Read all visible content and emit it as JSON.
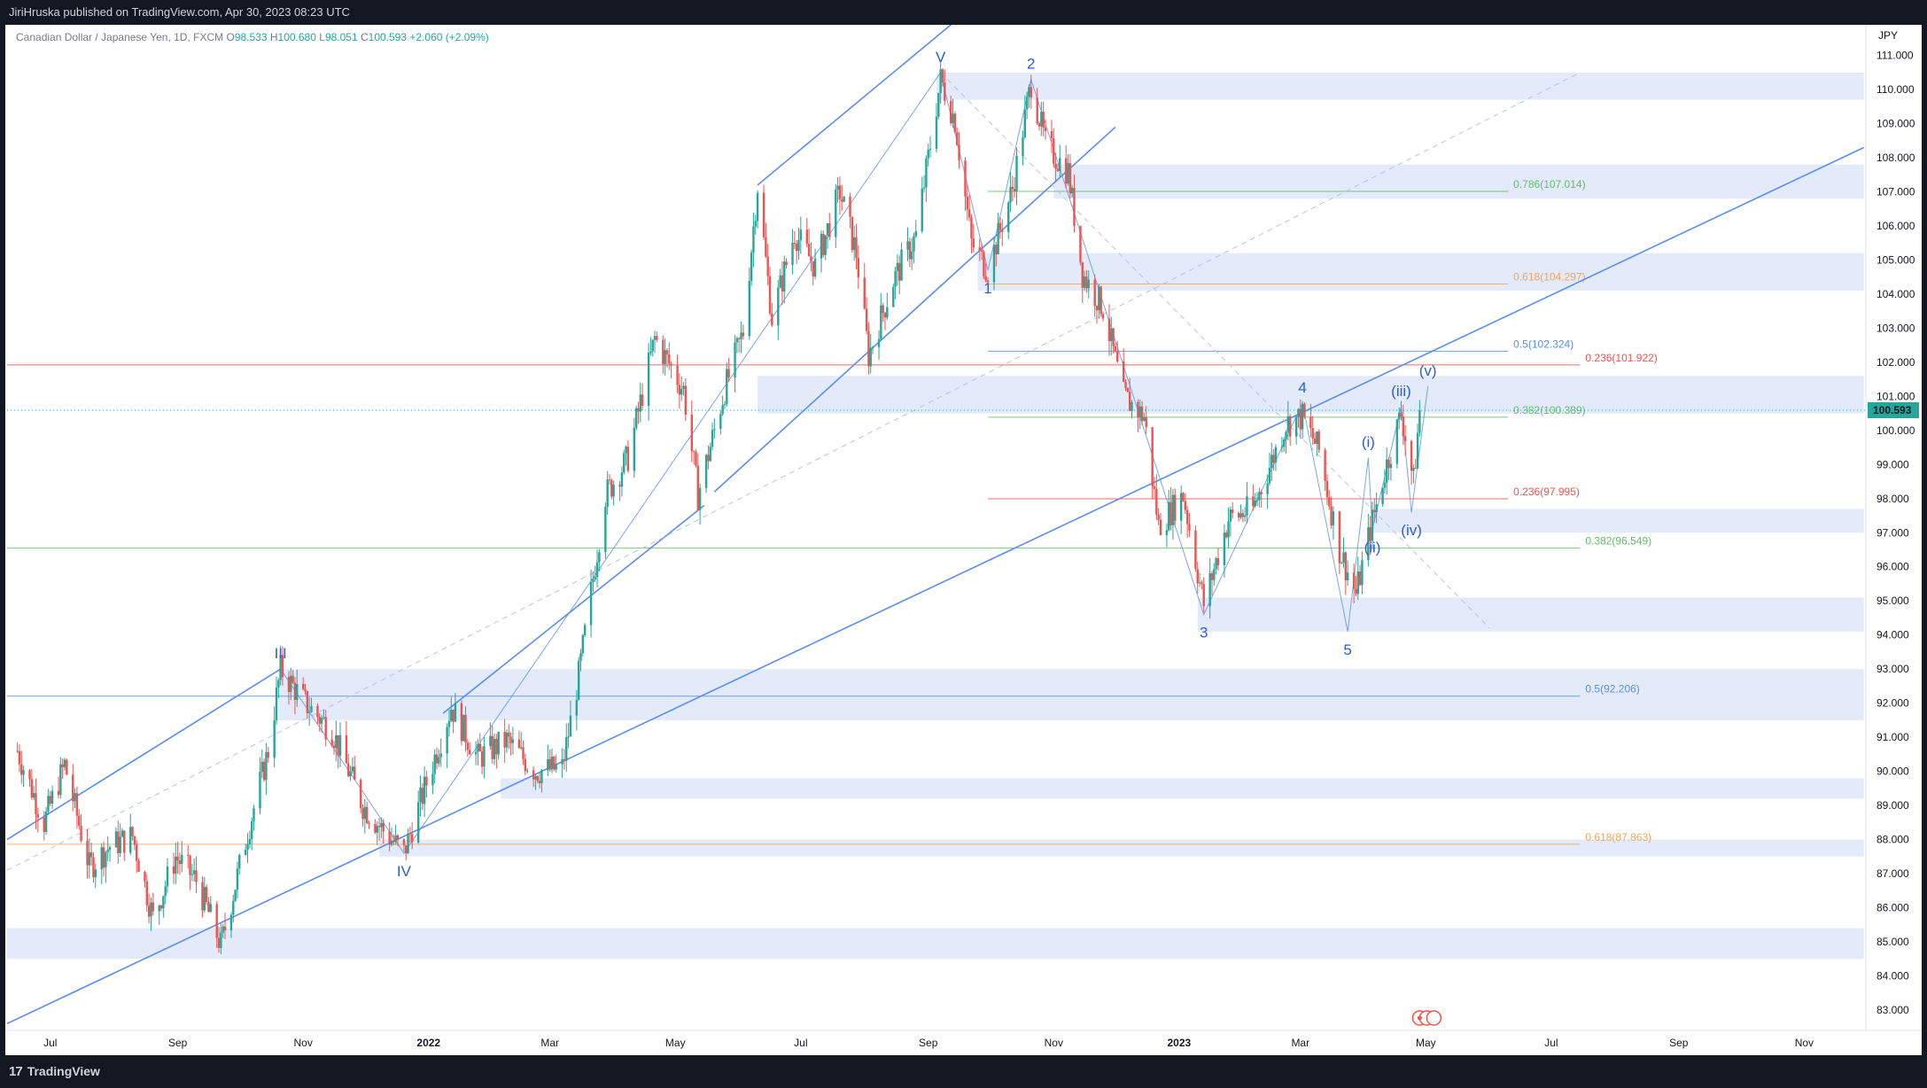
{
  "header": {
    "publisher": "JiriHruska published on TradingView.com, Apr 30, 2023 08:23 UTC"
  },
  "footer": {
    "brand": "TradingView"
  },
  "legend": {
    "symbol": "Canadian Dollar / Japanese Yen, 1D, FXCM",
    "open_label": "O",
    "open": "98.533",
    "high_label": "H",
    "high": "100.680",
    "low_label": "L",
    "low": "98.051",
    "close_label": "C",
    "close": "100.593",
    "change": "+2.060 (+2.09%)"
  },
  "colors": {
    "up": "#26a69a",
    "down": "#ef5350",
    "line": "#5b8def",
    "zone": "#e3ebfa",
    "wave": "#2a5cdb",
    "price_tag": "#26a69a"
  },
  "chart_data": {
    "type": "candlestick",
    "currency_label": "JPY",
    "last_price": "100.593",
    "ylim": [
      82.4,
      111.9
    ],
    "y_ticks": [
      "83.000",
      "84.000",
      "85.000",
      "86.000",
      "87.000",
      "88.000",
      "89.000",
      "90.000",
      "91.000",
      "92.000",
      "93.000",
      "94.000",
      "95.000",
      "96.000",
      "97.000",
      "98.000",
      "99.000",
      "100.000",
      "101.000",
      "102.000",
      "103.000",
      "104.000",
      "105.000",
      "106.000",
      "107.000",
      "108.000",
      "109.000",
      "110.000",
      "111.000"
    ],
    "x_ticks": [
      {
        "label": "Jul",
        "date": "2021-07-01"
      },
      {
        "label": "Sep",
        "date": "2021-09-01"
      },
      {
        "label": "Nov",
        "date": "2021-11-01"
      },
      {
        "label": "2022",
        "date": "2022-01-01"
      },
      {
        "label": "Mar",
        "date": "2022-03-01"
      },
      {
        "label": "May",
        "date": "2022-05-01"
      },
      {
        "label": "Jul",
        "date": "2022-07-01"
      },
      {
        "label": "Sep",
        "date": "2022-09-01"
      },
      {
        "label": "Nov",
        "date": "2022-11-01"
      },
      {
        "label": "2023",
        "date": "2023-01-01"
      },
      {
        "label": "Mar",
        "date": "2023-03-01"
      },
      {
        "label": "May",
        "date": "2023-05-01"
      },
      {
        "label": "Jul",
        "date": "2023-07-01"
      },
      {
        "label": "Sep",
        "date": "2023-09-01"
      },
      {
        "label": "Nov",
        "date": "2023-11-01"
      }
    ],
    "price_path": [
      {
        "d": "2021-06-15",
        "v": 90.6
      },
      {
        "d": "2021-06-28",
        "v": 88.5
      },
      {
        "d": "2021-07-08",
        "v": 90.2
      },
      {
        "d": "2021-07-20",
        "v": 87.2
      },
      {
        "d": "2021-07-30",
        "v": 87.8
      },
      {
        "d": "2021-08-10",
        "v": 88.1
      },
      {
        "d": "2021-08-20",
        "v": 85.7
      },
      {
        "d": "2021-08-31",
        "v": 87.5
      },
      {
        "d": "2021-09-10",
        "v": 86.8
      },
      {
        "d": "2021-09-22",
        "v": 84.9
      },
      {
        "d": "2021-10-05",
        "v": 88.2
      },
      {
        "d": "2021-10-15",
        "v": 90.6
      },
      {
        "d": "2021-10-21",
        "v": 93.0
      },
      {
        "d": "2021-11-02",
        "v": 92.0
      },
      {
        "d": "2021-11-15",
        "v": 91.2
      },
      {
        "d": "2021-11-30",
        "v": 89.0
      },
      {
        "d": "2021-12-08",
        "v": 88.4
      },
      {
        "d": "2021-12-20",
        "v": 87.6
      },
      {
        "d": "2022-01-05",
        "v": 90.6
      },
      {
        "d": "2022-01-12",
        "v": 91.9
      },
      {
        "d": "2022-01-25",
        "v": 90.4
      },
      {
        "d": "2022-02-08",
        "v": 90.9
      },
      {
        "d": "2022-02-22",
        "v": 90.0
      },
      {
        "d": "2022-03-07",
        "v": 90.1
      },
      {
        "d": "2022-03-15",
        "v": 92.8
      },
      {
        "d": "2022-03-28",
        "v": 98.1
      },
      {
        "d": "2022-04-08",
        "v": 99.2
      },
      {
        "d": "2022-04-21",
        "v": 102.7
      },
      {
        "d": "2022-05-05",
        "v": 101.2
      },
      {
        "d": "2022-05-12",
        "v": 98.1
      },
      {
        "d": "2022-05-25",
        "v": 101.2
      },
      {
        "d": "2022-06-03",
        "v": 102.9
      },
      {
        "d": "2022-06-10",
        "v": 107.2
      },
      {
        "d": "2022-06-17",
        "v": 103.3
      },
      {
        "d": "2022-06-28",
        "v": 105.8
      },
      {
        "d": "2022-07-08",
        "v": 104.8
      },
      {
        "d": "2022-07-20",
        "v": 107.0
      },
      {
        "d": "2022-07-28",
        "v": 105.2
      },
      {
        "d": "2022-08-03",
        "v": 102.2
      },
      {
        "d": "2022-08-15",
        "v": 104.4
      },
      {
        "d": "2022-08-26",
        "v": 105.7
      },
      {
        "d": "2022-09-07",
        "v": 110.3
      },
      {
        "d": "2022-09-14",
        "v": 109.1
      },
      {
        "d": "2022-09-22",
        "v": 105.5
      },
      {
        "d": "2022-09-30",
        "v": 104.7
      },
      {
        "d": "2022-10-12",
        "v": 107.1
      },
      {
        "d": "2022-10-21",
        "v": 110.2
      },
      {
        "d": "2022-10-28",
        "v": 108.4
      },
      {
        "d": "2022-11-08",
        "v": 107.6
      },
      {
        "d": "2022-11-15",
        "v": 104.6
      },
      {
        "d": "2022-11-25",
        "v": 103.6
      },
      {
        "d": "2022-12-05",
        "v": 101.0
      },
      {
        "d": "2022-12-15",
        "v": 100.4
      },
      {
        "d": "2022-12-22",
        "v": 97.2
      },
      {
        "d": "2023-01-03",
        "v": 98.1
      },
      {
        "d": "2023-01-13",
        "v": 94.9
      },
      {
        "d": "2023-01-25",
        "v": 97.4
      },
      {
        "d": "2023-02-06",
        "v": 97.7
      },
      {
        "d": "2023-02-22",
        "v": 100.2
      },
      {
        "d": "2023-03-02",
        "v": 100.4
      },
      {
        "d": "2023-03-10",
        "v": 99.4
      },
      {
        "d": "2023-03-20",
        "v": 96.5
      },
      {
        "d": "2023-03-28",
        "v": 95.2
      },
      {
        "d": "2023-04-04",
        "v": 97.1
      },
      {
        "d": "2023-04-12",
        "v": 99.0
      },
      {
        "d": "2023-04-19",
        "v": 100.5
      },
      {
        "d": "2023-04-25",
        "v": 98.5
      },
      {
        "d": "2023-04-28",
        "v": 100.593
      }
    ],
    "zones": [
      {
        "from": "2022-09-05",
        "to": "2023-11-30",
        "low": 109.7,
        "high": 110.5
      },
      {
        "from": "2022-11-01",
        "to": "2023-11-30",
        "low": 106.8,
        "high": 107.8
      },
      {
        "from": "2022-09-25",
        "to": "2023-11-30",
        "low": 104.1,
        "high": 105.2
      },
      {
        "from": "2022-06-10",
        "to": "2023-11-30",
        "low": 100.5,
        "high": 101.6
      },
      {
        "from": "2023-04-04",
        "to": "2023-11-30",
        "low": 97.0,
        "high": 97.7
      },
      {
        "from": "2023-01-10",
        "to": "2023-11-30",
        "low": 94.1,
        "high": 95.1
      },
      {
        "from": "2021-10-20",
        "to": "2023-11-30",
        "low": 91.5,
        "high": 93.0
      },
      {
        "from": "2022-02-05",
        "to": "2023-11-30",
        "low": 89.2,
        "high": 89.8
      },
      {
        "from": "2021-12-08",
        "to": "2023-11-30",
        "low": 87.5,
        "high": 88.0
      },
      {
        "from": "2021-06-10",
        "to": "2023-11-30",
        "low": 84.5,
        "high": 85.4
      }
    ],
    "fib_levels": [
      {
        "label": "0.786(107.014)",
        "value": 107.014,
        "from": "2022-09-30",
        "to": "2023-06-10",
        "color": "#66bb6a"
      },
      {
        "label": "0.618(104.297)",
        "value": 104.297,
        "from": "2022-09-30",
        "to": "2023-06-10",
        "color": "#f7a35c"
      },
      {
        "label": "0.5(102.324)",
        "value": 102.324,
        "from": "2022-09-30",
        "to": "2023-06-10",
        "color": "#5b8def"
      },
      {
        "label": "0.382(100.389)",
        "value": 100.389,
        "from": "2022-09-30",
        "to": "2023-06-10",
        "color": "#66bb6a"
      },
      {
        "label": "0.236(97.995)",
        "value": 97.995,
        "from": "2022-09-30",
        "to": "2023-06-10",
        "color": "#ef5350"
      },
      {
        "label": "0.236(101.922)",
        "value": 101.922,
        "from": "2021-06-10",
        "to": "2023-07-15",
        "color": "#ef5350"
      },
      {
        "label": "0.382(96.549)",
        "value": 96.549,
        "from": "2021-06-10",
        "to": "2023-07-15",
        "color": "#66bb6a"
      },
      {
        "label": "0.5(92.206)",
        "value": 92.206,
        "from": "2021-06-10",
        "to": "2023-07-15",
        "color": "#5b8def"
      },
      {
        "label": "0.618(87.863)",
        "value": 87.863,
        "from": "2021-06-10",
        "to": "2023-07-15",
        "color": "#f7a35c"
      }
    ],
    "trendlines": [
      {
        "from": {
          "d": "2021-06-10",
          "v": 82.6
        },
        "to": {
          "d": "2023-11-30",
          "v": 108.3
        }
      },
      {
        "from": {
          "d": "2022-05-20",
          "v": 98.2
        },
        "to": {
          "d": "2022-12-01",
          "v": 108.9
        }
      },
      {
        "from": {
          "d": "2022-06-10",
          "v": 107.2
        },
        "to": {
          "d": "2022-10-20",
          "v": 113.8
        }
      },
      {
        "from": {
          "d": "2021-06-10",
          "v": 88.0
        },
        "to": {
          "d": "2021-10-21",
          "v": 93.0
        }
      },
      {
        "from": {
          "d": "2022-01-08",
          "v": 91.7
        },
        "to": {
          "d": "2022-05-15",
          "v": 97.8
        }
      }
    ],
    "dashed_lines": [
      {
        "from": {
          "d": "2021-06-10",
          "v": 87.1
        },
        "to": {
          "d": "2023-07-15",
          "v": 110.5
        }
      },
      {
        "from": {
          "d": "2022-09-07",
          "v": 110.5
        },
        "to": {
          "d": "2023-06-01",
          "v": 94.2
        }
      }
    ],
    "waves": [
      {
        "label": "III",
        "d": "2021-10-21",
        "v": 93.0,
        "pos": "above"
      },
      {
        "label": "IV",
        "d": "2021-12-20",
        "v": 87.6,
        "pos": "below"
      },
      {
        "label": "V",
        "d": "2022-09-07",
        "v": 110.5,
        "pos": "above"
      },
      {
        "label": "1",
        "d": "2022-09-30",
        "v": 104.7,
        "pos": "below"
      },
      {
        "label": "2",
        "d": "2022-10-21",
        "v": 110.3,
        "pos": "above"
      },
      {
        "label": "3",
        "d": "2023-01-13",
        "v": 94.6,
        "pos": "below"
      },
      {
        "label": "4",
        "d": "2023-03-02",
        "v": 100.8,
        "pos": "above"
      },
      {
        "label": "5",
        "d": "2023-03-24",
        "v": 94.1,
        "pos": "below"
      },
      {
        "label": "(i)",
        "d": "2023-04-03",
        "v": 99.2,
        "pos": "above"
      },
      {
        "label": "(ii)",
        "d": "2023-04-05",
        "v": 97.1,
        "pos": "below"
      },
      {
        "label": "(iii)",
        "d": "2023-04-19",
        "v": 100.7,
        "pos": "above"
      },
      {
        "label": "(iv)",
        "d": "2023-04-24",
        "v": 97.6,
        "pos": "below"
      },
      {
        "label": "(v)",
        "d": "2023-05-02",
        "v": 101.3,
        "pos": "above"
      }
    ]
  }
}
